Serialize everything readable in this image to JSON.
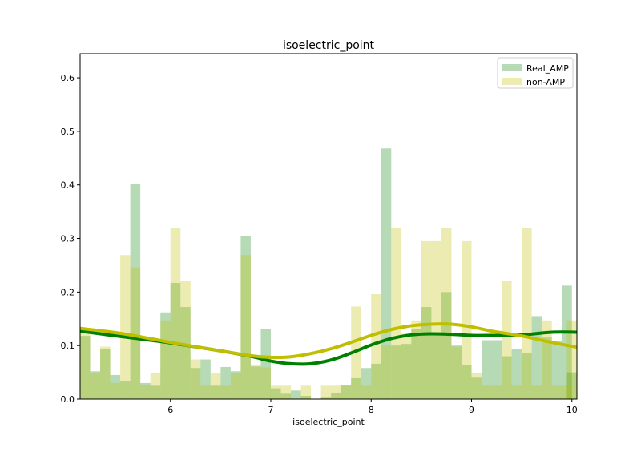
{
  "chart_data": {
    "type": "bar",
    "title": "isoelectric_point",
    "xlabel": "isoelectric_point",
    "ylabel": "",
    "xlim": [
      5.1,
      10.05
    ],
    "ylim": [
      0,
      0.645
    ],
    "xticks": [
      6,
      7,
      8,
      9,
      10
    ],
    "yticks": [
      0.0,
      0.1,
      0.2,
      0.3,
      0.4,
      0.5,
      0.6
    ],
    "legend_position": "upper right",
    "series": [
      {
        "name": "Real_AMP",
        "kind": "histogram",
        "color": "#1f8f1f",
        "opacity": 0.33,
        "bin_width": 0.1,
        "bin_starts": [
          5.1,
          5.2,
          5.3,
          5.4,
          5.5,
          5.6,
          5.7,
          5.8,
          5.9,
          6.0,
          6.1,
          6.2,
          6.3,
          6.4,
          6.5,
          6.6,
          6.7,
          6.8,
          6.9,
          7.0,
          7.1,
          7.2,
          7.3,
          7.4,
          7.5,
          7.6,
          7.7,
          7.8,
          7.9,
          8.0,
          8.1,
          8.2,
          8.3,
          8.4,
          8.5,
          8.6,
          8.7,
          8.8,
          8.9,
          9.0,
          9.1,
          9.2,
          9.3,
          9.4,
          9.5,
          9.6,
          9.7,
          9.8,
          9.9,
          9.95
        ],
        "values": [
          0.118,
          0.052,
          0.093,
          0.045,
          0.034,
          0.402,
          0.03,
          0.025,
          0.162,
          0.217,
          0.172,
          0.058,
          0.074,
          0.025,
          0.06,
          0.052,
          0.305,
          0.061,
          0.131,
          0.02,
          0.01,
          0.016,
          0.006,
          0.0,
          0.004,
          0.012,
          0.026,
          0.039,
          0.058,
          0.066,
          0.468,
          0.1,
          0.103,
          0.131,
          0.172,
          0.12,
          0.2,
          0.1,
          0.063,
          0.04,
          0.11,
          0.11,
          0.08,
          0.093,
          0.086,
          0.155,
          0.115,
          0.109,
          0.212,
          0.05
        ]
      },
      {
        "name": "non-AMP",
        "kind": "histogram",
        "color": "#bfbf00",
        "opacity": 0.3,
        "bin_width": 0.1,
        "bin_starts": [
          5.1,
          5.2,
          5.3,
          5.4,
          5.5,
          5.6,
          5.7,
          5.8,
          5.9,
          6.0,
          6.1,
          6.2,
          6.3,
          6.4,
          6.5,
          6.6,
          6.7,
          6.8,
          6.9,
          7.0,
          7.1,
          7.2,
          7.3,
          7.4,
          7.5,
          7.6,
          7.7,
          7.8,
          7.9,
          8.0,
          8.1,
          8.2,
          8.3,
          8.4,
          8.5,
          8.6,
          8.7,
          8.8,
          8.9,
          9.0,
          9.1,
          9.2,
          9.3,
          9.4,
          9.5,
          9.6,
          9.7,
          9.8,
          9.9,
          9.95
        ],
        "values": [
          0.131,
          0.048,
          0.098,
          0.03,
          0.269,
          0.246,
          0.026,
          0.048,
          0.147,
          0.319,
          0.22,
          0.074,
          0.025,
          0.048,
          0.025,
          0.048,
          0.269,
          0.063,
          0.059,
          0.025,
          0.025,
          0.0,
          0.025,
          0.0,
          0.025,
          0.025,
          0.025,
          0.173,
          0.025,
          0.196,
          0.1,
          0.319,
          0.122,
          0.147,
          0.295,
          0.295,
          0.319,
          0.098,
          0.295,
          0.049,
          0.025,
          0.025,
          0.22,
          0.025,
          0.319,
          0.025,
          0.147,
          0.025,
          0.025,
          0.147
        ]
      },
      {
        "name": "Real_AMP",
        "kind": "kde",
        "color": "#008000",
        "x": [
          5.1,
          5.5,
          6.0,
          6.5,
          6.8,
          7.0,
          7.2,
          7.4,
          7.6,
          7.8,
          8.0,
          8.2,
          8.4,
          8.6,
          8.8,
          9.0,
          9.2,
          9.5,
          9.8,
          10.05
        ],
        "y": [
          0.127,
          0.117,
          0.105,
          0.09,
          0.08,
          0.071,
          0.066,
          0.066,
          0.073,
          0.086,
          0.101,
          0.113,
          0.12,
          0.122,
          0.121,
          0.119,
          0.119,
          0.12,
          0.125,
          0.125
        ]
      },
      {
        "name": "non-AMP",
        "kind": "kde",
        "color": "#bfbf00",
        "x": [
          5.1,
          5.5,
          6.0,
          6.5,
          6.8,
          7.0,
          7.2,
          7.4,
          7.6,
          7.8,
          8.0,
          8.2,
          8.4,
          8.6,
          8.8,
          9.0,
          9.2,
          9.5,
          9.8,
          10.05
        ],
        "y": [
          0.132,
          0.123,
          0.106,
          0.09,
          0.081,
          0.078,
          0.079,
          0.085,
          0.094,
          0.106,
          0.119,
          0.13,
          0.137,
          0.14,
          0.14,
          0.135,
          0.127,
          0.118,
          0.106,
          0.097
        ]
      }
    ],
    "legend": [
      {
        "label": "Real_AMP",
        "color": "#1f8f1f",
        "opacity": 0.33
      },
      {
        "label": "non-AMP",
        "color": "#bfbf00",
        "opacity": 0.3
      }
    ]
  }
}
